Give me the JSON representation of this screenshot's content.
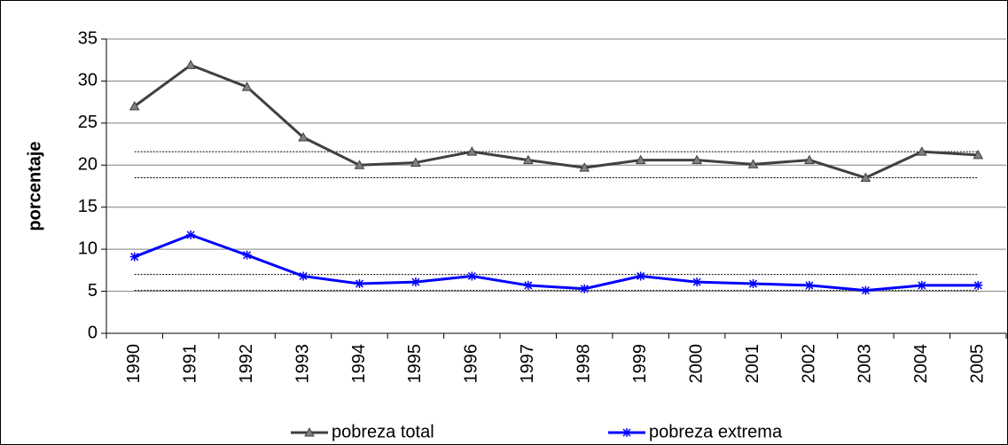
{
  "chart_data": {
    "type": "line",
    "y_label": "porcentaje",
    "categories": [
      "1990",
      "1991",
      "1992",
      "1993",
      "1994",
      "1995",
      "1996",
      "1997",
      "1998",
      "1999",
      "2000",
      "2001",
      "2002",
      "2003",
      "2004",
      "2005"
    ],
    "series": [
      {
        "name": "pobreza total",
        "color": "#404040",
        "marker": "triangle",
        "values": [
          27.0,
          31.9,
          29.3,
          23.3,
          20.0,
          20.3,
          21.6,
          20.6,
          19.7,
          20.6,
          20.6,
          20.1,
          20.6,
          18.5,
          21.6,
          21.2
        ]
      },
      {
        "name": "pobreza extrema",
        "color": "#0000ff",
        "marker": "asterisk",
        "values": [
          9.1,
          11.7,
          9.3,
          6.8,
          5.9,
          6.1,
          6.8,
          5.7,
          5.3,
          6.8,
          6.1,
          5.9,
          5.7,
          5.1,
          5.7,
          5.7
        ]
      }
    ],
    "reference_lines": [
      21.6,
      18.5,
      7.0,
      5.1
    ],
    "ylim": [
      0,
      35
    ],
    "yticks": [
      0,
      5,
      10,
      15,
      20,
      25,
      30,
      35
    ],
    "grid": true,
    "legend": "bottom"
  }
}
